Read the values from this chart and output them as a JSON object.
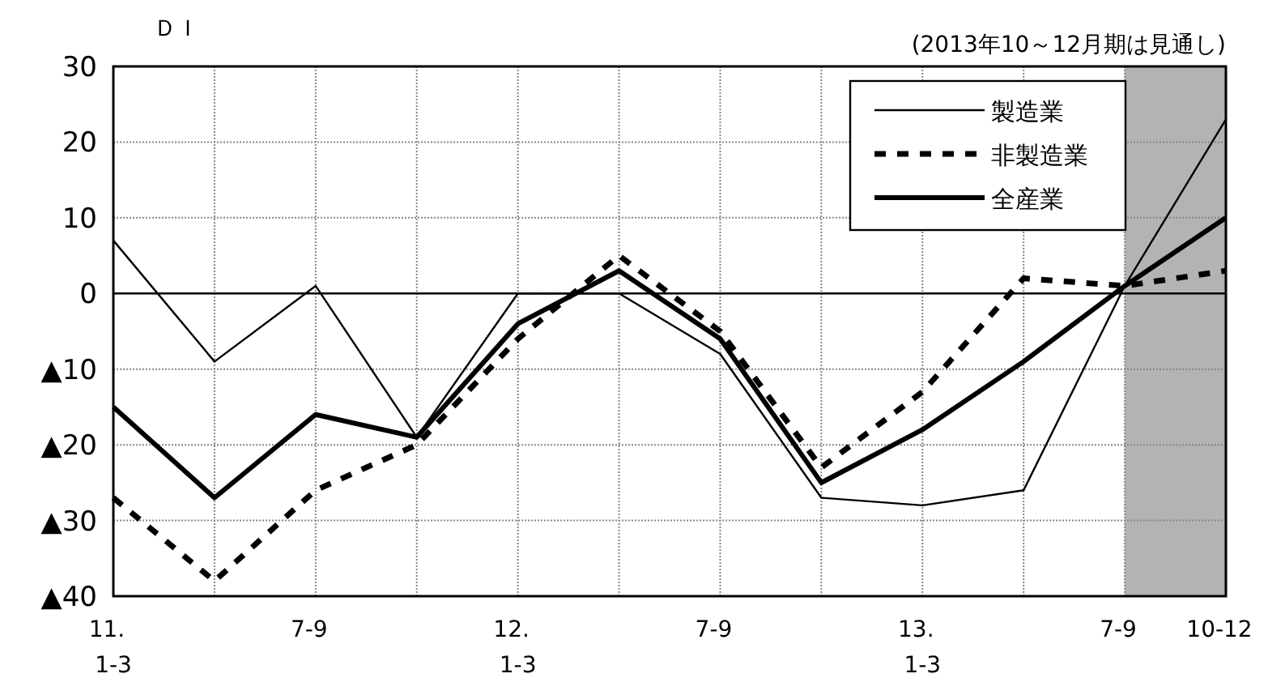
{
  "chart_data": {
    "type": "line",
    "ylabel": "ＤＩ",
    "annotations": [
      "(2013年10～12月期は見通し)"
    ],
    "categories": [
      "11.\n1-3",
      null,
      "7-9",
      null,
      "12.\n1-3",
      null,
      "7-9",
      null,
      "13.\n1-3",
      null,
      "7-9",
      "10-12"
    ],
    "series": [
      {
        "name": "製造業",
        "color": "#000000",
        "line_style": "solid",
        "values": [
          7,
          -9,
          1,
          -19,
          0,
          0,
          -8,
          -27,
          -28,
          -26,
          1,
          23
        ]
      },
      {
        "name": "非製造業",
        "color": "#000000",
        "line_style": "dashed",
        "values": [
          -27,
          -38,
          -26,
          -20,
          -6,
          5,
          -5,
          -23,
          -13,
          2,
          1,
          3
        ]
      },
      {
        "name": "全産業",
        "color": "#000000",
        "line_style": "solid",
        "values": [
          -15,
          -27,
          -16,
          -19,
          -4,
          3,
          -6,
          -25,
          -18,
          -9,
          1,
          10
        ]
      }
    ],
    "ylim": [
      -40,
      30
    ],
    "yticks": [
      30,
      20,
      10,
      0,
      {
        "value": -10,
        "label": "▲10"
      },
      {
        "value": -20,
        "label": "▲20"
      },
      {
        "value": -30,
        "label": "▲30"
      },
      {
        "value": -40,
        "label": "▲40"
      }
    ],
    "ref_lines": [
      {
        "axis": "y",
        "value": 0,
        "color": "#000000"
      }
    ],
    "grid": true,
    "legend": "top right"
  }
}
